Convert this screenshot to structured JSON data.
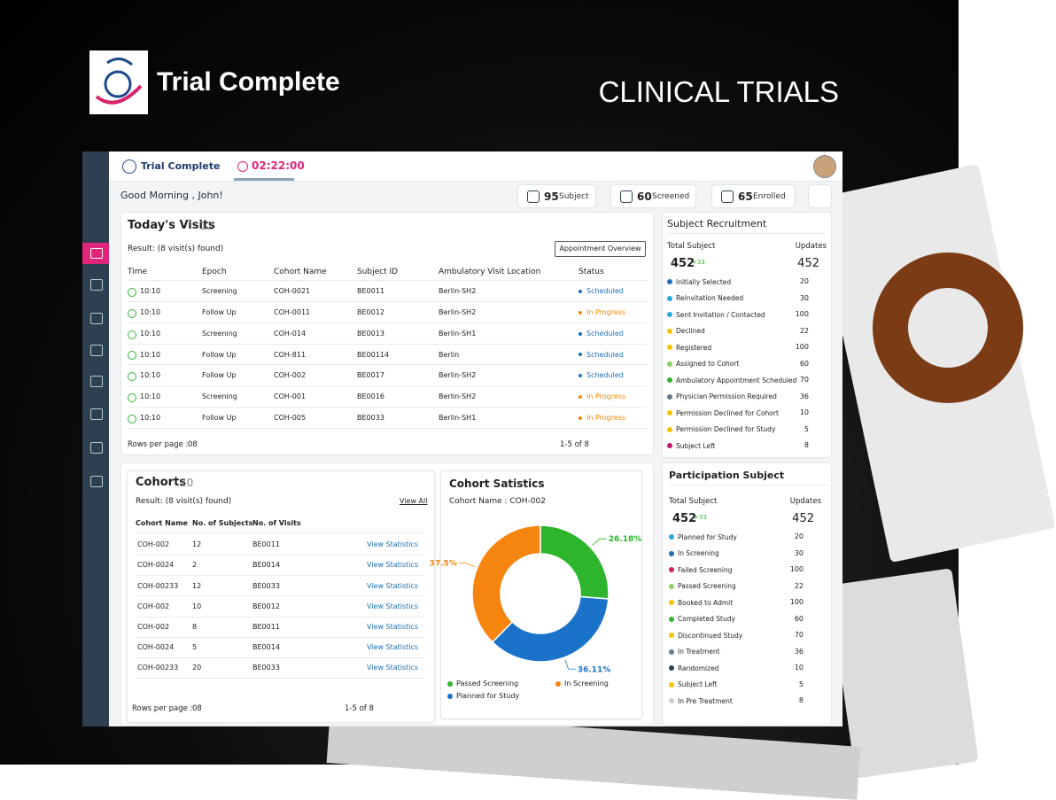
{
  "header": {
    "brand": "Trial Complete",
    "tagline": "CLINICAL TRIALS"
  },
  "app": {
    "brand": "Trial Complete",
    "timer": "02:22:00",
    "greeting": "Good Morning , John!",
    "stats": [
      {
        "value": 95,
        "label": "Subject"
      },
      {
        "value": 60,
        "label": "Screened"
      },
      {
        "value": 65,
        "label": "Enrolled"
      }
    ]
  },
  "visits": {
    "title": "Today's Visits",
    "count": 12,
    "result": "Result:  (8 visit(s) found)",
    "button": "Appointment Overview",
    "columns": [
      "Time",
      "Epoch",
      "Cohort Name",
      "Subject ID",
      "Ambulatory Visit Location",
      "Status"
    ],
    "rows": [
      [
        "10:10",
        "Screening",
        "COH-0021",
        "BE0011",
        "Berlin-SH2",
        "Scheduled"
      ],
      [
        "10:10",
        "Follow Up",
        "COH-0011",
        "BE0012",
        "Berlin-SH2",
        "In Progress"
      ],
      [
        "10:10",
        "Screening",
        "COH-014",
        "BE0013",
        "Berlin-SH1",
        "Scheduled"
      ],
      [
        "10:10",
        "Follow Up",
        "COH-811",
        "BE00114",
        "Berlin",
        "Scheduled"
      ],
      [
        "10:10",
        "Follow Up",
        "COH-002",
        "BE0017",
        "Berlin-SH2",
        "Scheduled"
      ],
      [
        "10:10",
        "Screening",
        "COH-001",
        "BE0016",
        "Berlin-SH2",
        "In Progress"
      ],
      [
        "10:10",
        "Follow Up",
        "COH-005",
        "BE0033",
        "Berlin-SH1",
        "In Progress"
      ]
    ],
    "status_colors": [
      "#1b6fb5",
      "#f08a00",
      "#1b6fb5",
      "#1b6fb5",
      "#1b6fb5",
      "#f08a00",
      "#f08a00"
    ],
    "rows_per_page": "Rows per page :",
    "page_size": "08",
    "pagination": "1-5 of 8"
  },
  "cohorts": {
    "title": "Cohorts",
    "count": 10,
    "result": "Result:  (8 visit(s) found)",
    "view_all": "View All",
    "columns": [
      "Cohort Name",
      "No. of Subjects",
      "No. of Visits"
    ],
    "rows": [
      [
        "COH-002",
        12,
        "BE0011",
        "View Statistics"
      ],
      [
        "COH-0024",
        2,
        "BE0014",
        "View Statistics"
      ],
      [
        "COH-00233",
        12,
        "BE0033",
        "View Statistics"
      ],
      [
        "COH-002",
        10,
        "BE0012",
        "View Statistics"
      ],
      [
        "COH-002",
        8,
        "BE0011",
        "View Statistics"
      ],
      [
        "COH-0024",
        5,
        "BE0014",
        "View Statistics"
      ],
      [
        "COH-00233",
        20,
        "BE0033",
        "View Statistics"
      ]
    ],
    "rows_per_page": "Rows per page :",
    "page_size": "08",
    "pagination": "1-5 of 8"
  },
  "chart_data": {
    "type": "donut",
    "title": "Cohort Satistics",
    "subtitle": "Cohort Name : COH-002",
    "categories": [
      "Passed Screening",
      "Planned for Study",
      "In Screening"
    ],
    "values": [
      26.18,
      36.11,
      37.5
    ],
    "value_labels": [
      "26.18%",
      "36.11%",
      "37.5%"
    ],
    "colors": [
      "#2db52d",
      "#1a73c9",
      "#f5850f"
    ]
  },
  "recruitment": {
    "title": "Subject Recruitment",
    "total_label": "Total Subject",
    "total": 452,
    "delta": "+33",
    "updates_label": "Updates",
    "updates": 452,
    "rows": [
      {
        "label": "Initially Selected",
        "value": 20,
        "color": "#1f6fb5"
      },
      {
        "label": "Reinvitation Needed",
        "value": 30,
        "color": "#29a8e0"
      },
      {
        "label": "Sent Invitation / Contacted",
        "value": 100,
        "color": "#29a8e0"
      },
      {
        "label": "Declined",
        "value": 22,
        "color": "#f5c400"
      },
      {
        "label": "Registered",
        "value": 100,
        "color": "#f5c400"
      },
      {
        "label": "Assigned to Cohort",
        "value": 60,
        "color": "#8ccf6b"
      },
      {
        "label": "Ambulatory Appointment Scheduled",
        "value": 70,
        "color": "#2db52d"
      },
      {
        "label": "Physician Permission Required",
        "value": 36,
        "color": "#6b7b8c"
      },
      {
        "label": "Permission Declined for Cohort",
        "value": 10,
        "color": "#f5c400"
      },
      {
        "label": "Permission Declined for Study",
        "value": 5,
        "color": "#f5c400"
      },
      {
        "label": "Subject Left",
        "value": 8,
        "color": "#c0186a"
      }
    ]
  },
  "participation": {
    "title": "Participation Subject",
    "total_label": "Total Subject",
    "total": 452,
    "delta": "+33",
    "updates_label": "Updates",
    "updates": 452,
    "rows": [
      {
        "label": "Planned for Study",
        "value": 20,
        "color": "#29a8e0"
      },
      {
        "label": "In Screening",
        "value": 30,
        "color": "#1f6fb5"
      },
      {
        "label": "Failed Screening",
        "value": 100,
        "color": "#d81b60"
      },
      {
        "label": "Passed Screening",
        "value": 22,
        "color": "#8ccf6b"
      },
      {
        "label": "Booked to Admit",
        "value": 100,
        "color": "#f5c400"
      },
      {
        "label": "Completed Study",
        "value": 60,
        "color": "#2db52d"
      },
      {
        "label": "Discontinued Study",
        "value": 70,
        "color": "#f5c400"
      },
      {
        "label": "In Treatment",
        "value": 36,
        "color": "#6b7b8c"
      },
      {
        "label": "Randomized",
        "value": 10,
        "color": "#2d3e4e"
      },
      {
        "label": "Subject Left",
        "value": 5,
        "color": "#f5c400"
      },
      {
        "label": "In Pre Treatment",
        "value": 8,
        "color": "#cccccc"
      }
    ]
  }
}
